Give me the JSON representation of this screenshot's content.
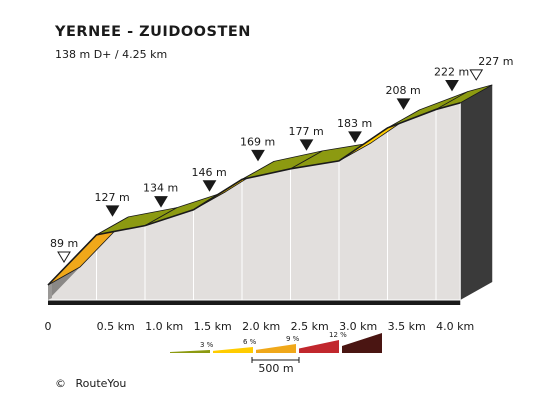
{
  "chart_data": {
    "type": "area",
    "title": "YERNEE - ZUIDOOSTEN",
    "subtitle": "138 m D+ / 4.25 km",
    "x_unit": "km",
    "points": [
      {
        "km": 0.0,
        "elev": 89,
        "label": "89 m"
      },
      {
        "km": 0.5,
        "elev": 127,
        "label": "127 m"
      },
      {
        "km": 1.0,
        "elev": 134,
        "label": "134 m"
      },
      {
        "km": 1.5,
        "elev": 146,
        "label": "146 m"
      },
      {
        "km": 2.0,
        "elev": 169,
        "label": "169 m"
      },
      {
        "km": 2.5,
        "elev": 177,
        "label": "177 m"
      },
      {
        "km": 3.0,
        "elev": 183,
        "label": "183 m"
      },
      {
        "km": 3.5,
        "elev": 208,
        "label": "208 m"
      },
      {
        "km": 4.0,
        "elev": 222,
        "label": "222 m"
      },
      {
        "km": 4.25,
        "elev": 227,
        "label": "227 m"
      }
    ],
    "segment_colors": [
      "#f0a81a",
      "#8c9a11",
      "#8c9a11",
      "#ffcc00",
      "#8c9a11",
      "#8c9a11",
      "#ffcc00",
      "#8c9a11",
      "#8c9a11"
    ],
    "start_marker": "open-triangle",
    "end_marker": "open-triangle",
    "x_ticks": [
      "0",
      "0.5 km",
      "1.0 km",
      "1.5 km",
      "2.0 km",
      "2.5 km",
      "3.0 km",
      "3.5 km",
      "4.0 km"
    ],
    "legend": [
      {
        "label": "3 %",
        "color": "#8c9a11"
      },
      {
        "label": "6 %",
        "color": "#ffcc00"
      },
      {
        "label": "9 %",
        "color": "#f0a81a"
      },
      {
        "label": "12 %",
        "color": "#c1272d"
      },
      {
        "label": "",
        "color": "#4a1512"
      }
    ],
    "scale_label": "500 m"
  },
  "footer": {
    "copyright_symbol": "©",
    "brand": "RouteYou"
  }
}
